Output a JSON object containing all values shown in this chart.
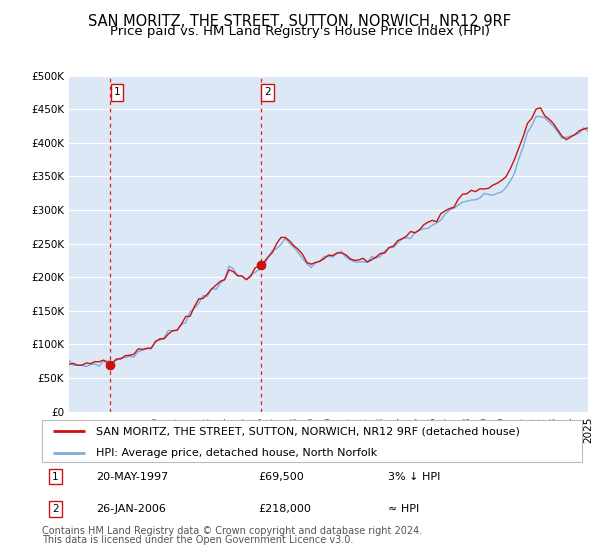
{
  "title": "SAN MORITZ, THE STREET, SUTTON, NORWICH, NR12 9RF",
  "subtitle": "Price paid vs. HM Land Registry's House Price Index (HPI)",
  "legend_line1": "SAN MORITZ, THE STREET, SUTTON, NORWICH, NR12 9RF (detached house)",
  "legend_line2": "HPI: Average price, detached house, North Norfolk",
  "annotation1_date": "20-MAY-1997",
  "annotation1_price": "£69,500",
  "annotation1_hpi": "3% ↓ HPI",
  "annotation2_date": "26-JAN-2006",
  "annotation2_price": "£218,000",
  "annotation2_hpi": "≈ HPI",
  "footnote1": "Contains HM Land Registry data © Crown copyright and database right 2024.",
  "footnote2": "This data is licensed under the Open Government Licence v3.0.",
  "xmin": 1995,
  "xmax": 2025,
  "ymin": 0,
  "ymax": 500000,
  "yticks": [
    0,
    50000,
    100000,
    150000,
    200000,
    250000,
    300000,
    350000,
    400000,
    450000,
    500000
  ],
  "ytick_labels": [
    "£0",
    "£50K",
    "£100K",
    "£150K",
    "£200K",
    "£250K",
    "£300K",
    "£350K",
    "£400K",
    "£450K",
    "£500K"
  ],
  "sale1_x": 1997.38,
  "sale1_y": 69500,
  "sale2_x": 2006.07,
  "sale2_y": 218000,
  "hpi_color": "#7aaddc",
  "property_color": "#cc1111",
  "background_color": "#dce8f5",
  "plot_bg_color": "#ffffff",
  "grid_color": "#ffffff",
  "vline_color": "#dd2222",
  "marker_color": "#cc1111",
  "title_fontsize": 10.5,
  "subtitle_fontsize": 9.5,
  "tick_fontsize": 7.5,
  "legend_fontsize": 8,
  "annotation_fontsize": 8,
  "footnote_fontsize": 7
}
